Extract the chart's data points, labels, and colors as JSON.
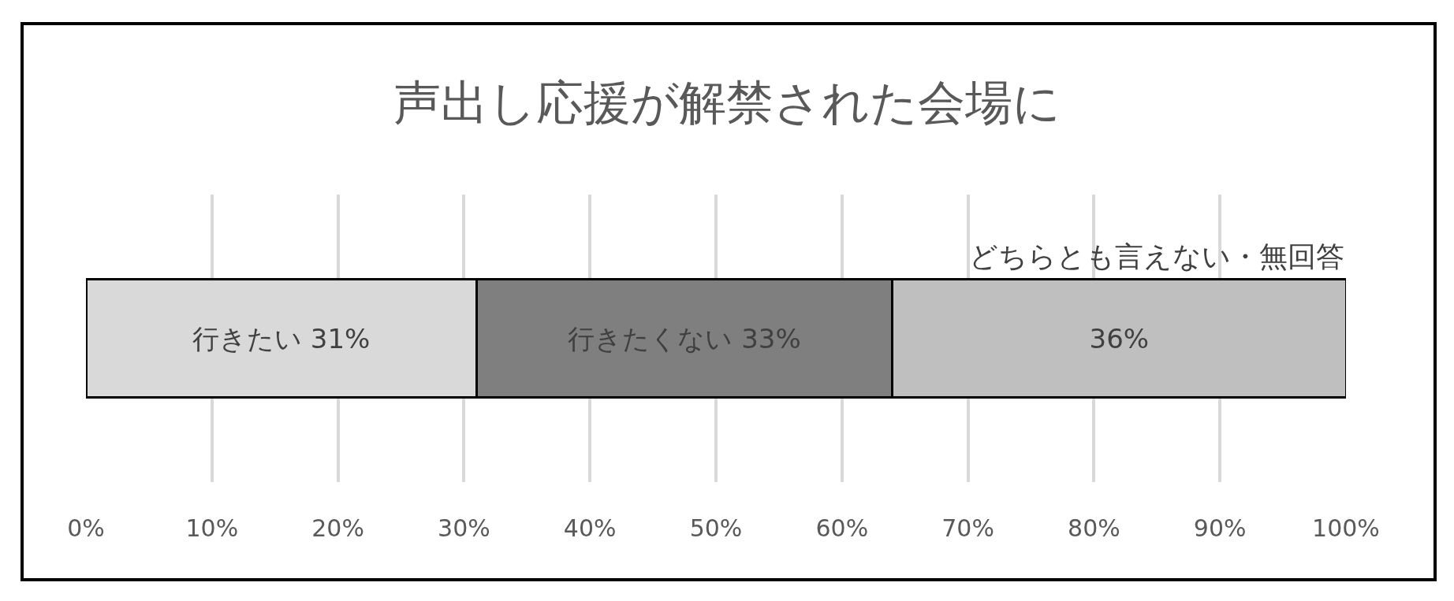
{
  "chart_data": {
    "type": "bar",
    "orientation": "horizontal",
    "stacked": true,
    "title": "声出し応援が解禁された会場に",
    "categories": [
      null
    ],
    "series": [
      {
        "name": "行きたい",
        "color": "#d9d9d9",
        "values": [
          31
        ],
        "value_labels": [
          "31%"
        ]
      },
      {
        "name": "行きたくない",
        "color": "#7f7f7f",
        "values": [
          33
        ],
        "value_labels": [
          "33%"
        ]
      },
      {
        "name": "どちらとも言えない・無回答",
        "color": "#bfbfbf",
        "values": [
          36
        ],
        "value_labels": [
          "36%"
        ]
      }
    ],
    "xlim": [
      0,
      100
    ],
    "xticks": [
      {
        "value": 0,
        "label": "0%"
      },
      {
        "value": 10,
        "label": "10%"
      },
      {
        "value": 20,
        "label": "20%"
      },
      {
        "value": 30,
        "label": "30%"
      },
      {
        "value": 40,
        "label": "40%"
      },
      {
        "value": 50,
        "label": "50%"
      },
      {
        "value": 60,
        "label": "60%"
      },
      {
        "value": 70,
        "label": "70%"
      },
      {
        "value": 80,
        "label": "80%"
      },
      {
        "value": 90,
        "label": "90%"
      },
      {
        "value": 100,
        "label": "100%"
      }
    ],
    "grid": "x",
    "legend": false,
    "tick_labels": "x"
  }
}
